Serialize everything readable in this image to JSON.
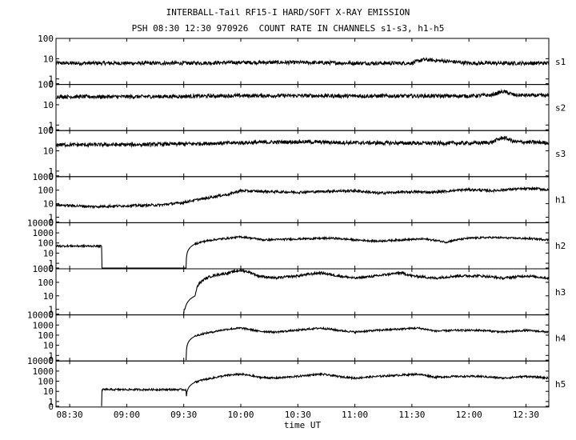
{
  "title": "INTERBALL-Tail RF15-I HARD/SOFT X-RAY EMISSION",
  "subtitle": "PSH 08:30 12:30 970926  COUNT RATE IN CHANNELS s1-s3, h1-h5",
  "chart_data": {
    "type": "line",
    "title": "INTERBALL-Tail RF15-I HARD/SOFT X-RAY EMISSION",
    "subtitle": "PSH 08:30 12:30 970926  COUNT RATE IN CHANNELS s1-s3, h1-h5",
    "xlabel": "time UT",
    "x_ticks": [
      "08:30",
      "09:00",
      "09:30",
      "10:00",
      "10:30",
      "11:00",
      "11:30",
      "12:00",
      "12:30"
    ],
    "x_range_hours": [
      8.38,
      12.7
    ],
    "yscale": "log",
    "grid": false,
    "panels": [
      {
        "name": "s1",
        "y_ticks": [
          "100",
          "10",
          "1",
          "0"
        ],
        "ylim": [
          0,
          100
        ],
        "series": [
          {
            "t": [
              8.38,
              9.0,
              9.5,
              10.0,
              10.5,
              11.0,
              11.5,
              11.6,
              12.0,
              12.5,
              12.7
            ],
            "v": [
              6,
              6,
              6,
              6.5,
              6.5,
              6,
              6,
              9,
              6,
              6,
              6
            ]
          }
        ]
      },
      {
        "name": "s2",
        "y_ticks": [
          "100",
          "10",
          "1",
          "0"
        ],
        "ylim": [
          0,
          100
        ],
        "series": [
          {
            "t": [
              8.38,
              9.0,
              9.5,
              10.0,
              10.5,
              11.0,
              11.5,
              12.0,
              12.2,
              12.3,
              12.4,
              12.7
            ],
            "v": [
              25,
              25,
              26,
              28,
              28,
              27,
              27,
              27,
              30,
              45,
              30,
              28
            ]
          }
        ]
      },
      {
        "name": "s3",
        "y_ticks": [
          "100",
          "10",
          "1",
          "0"
        ],
        "ylim": [
          0,
          100
        ],
        "series": [
          {
            "t": [
              8.38,
              9.0,
              9.5,
              10.0,
              10.5,
              11.0,
              11.5,
              12.0,
              12.2,
              12.3,
              12.4,
              12.7
            ],
            "v": [
              20,
              20,
              22,
              25,
              28,
              25,
              24,
              24,
              26,
              45,
              28,
              25
            ]
          }
        ]
      },
      {
        "name": "h1",
        "y_ticks": [
          "1000",
          "100",
          "10",
          "1",
          "0"
        ],
        "ylim": [
          0,
          1000
        ],
        "series": [
          {
            "t": [
              8.38,
              8.7,
              9.0,
              9.3,
              9.5,
              9.7,
              9.9,
              10.0,
              10.2,
              10.5,
              10.8,
              11.0,
              11.2,
              11.5,
              11.7,
              12.0,
              12.2,
              12.4,
              12.6,
              12.7
            ],
            "v": [
              8,
              6,
              7,
              8,
              12,
              25,
              50,
              90,
              80,
              70,
              85,
              90,
              60,
              75,
              70,
              110,
              90,
              120,
              130,
              100
            ]
          }
        ]
      },
      {
        "name": "h2",
        "y_ticks": [
          "10000",
          "1000",
          "100",
          "10",
          "1",
          "0"
        ],
        "ylim": [
          0,
          10000
        ],
        "series": [
          {
            "t": [
              8.38,
              8.78,
              8.78,
              9.52,
              9.6,
              9.75,
              9.9,
              10.0,
              10.2,
              10.5,
              10.8,
              11.0,
              11.2,
              11.4,
              11.6,
              11.8,
              12.0,
              12.2,
              12.4,
              12.6,
              12.7
            ],
            "v": [
              50,
              50,
              0,
              0,
              80,
              200,
              300,
              400,
              200,
              250,
              300,
              200,
              150,
              200,
              250,
              120,
              300,
              350,
              300,
              250,
              200
            ]
          }
        ]
      },
      {
        "name": "h3",
        "y_ticks": [
          "1000",
          "100",
          "10",
          "1",
          "0"
        ],
        "ylim": [
          0,
          1000
        ],
        "series": [
          {
            "t": [
              9.5,
              9.6,
              9.75,
              9.9,
              10.0,
              10.15,
              10.3,
              10.5,
              10.7,
              10.85,
              11.0,
              11.2,
              11.4,
              11.5,
              11.7,
              11.9,
              12.1,
              12.3,
              12.5,
              12.7
            ],
            "v": [
              0,
              10,
              300,
              500,
              800,
              300,
              200,
              300,
              500,
              300,
              200,
              300,
              500,
              300,
              200,
              300,
              300,
              200,
              300,
              200
            ]
          }
        ]
      },
      {
        "name": "h4",
        "y_ticks": [
          "10000",
          "1000",
          "100",
          "10",
          "1",
          "0"
        ],
        "ylim": [
          0,
          10000
        ],
        "series": [
          {
            "t": [
              9.52,
              9.6,
              9.75,
              9.9,
              10.0,
              10.15,
              10.3,
              10.5,
              10.7,
              10.85,
              11.0,
              11.2,
              11.4,
              11.55,
              11.7,
              11.9,
              12.1,
              12.3,
              12.5,
              12.7
            ],
            "v": [
              0,
              80,
              200,
              400,
              500,
              250,
              200,
              300,
              500,
              300,
              200,
              300,
              400,
              500,
              250,
              300,
              300,
              200,
              300,
              200
            ]
          }
        ]
      },
      {
        "name": "h5",
        "y_ticks": [
          "10000",
          "1000",
          "100",
          "10",
          "1",
          "0"
        ],
        "ylim": [
          0,
          10000
        ],
        "series": [
          {
            "t": [
              8.78,
              8.78,
              9.52,
              9.52,
              9.6,
              9.75,
              9.9,
              10.0,
              10.15,
              10.3,
              10.5,
              10.7,
              10.85,
              11.0,
              11.2,
              11.4,
              11.55,
              11.7,
              11.9,
              12.1,
              12.3,
              12.5,
              12.7
            ],
            "v": [
              0,
              15,
              15,
              0,
              80,
              200,
              400,
              500,
              250,
              200,
              300,
              500,
              300,
              200,
              300,
              400,
              500,
              250,
              300,
              300,
              200,
              300,
              200
            ]
          }
        ]
      }
    ]
  }
}
